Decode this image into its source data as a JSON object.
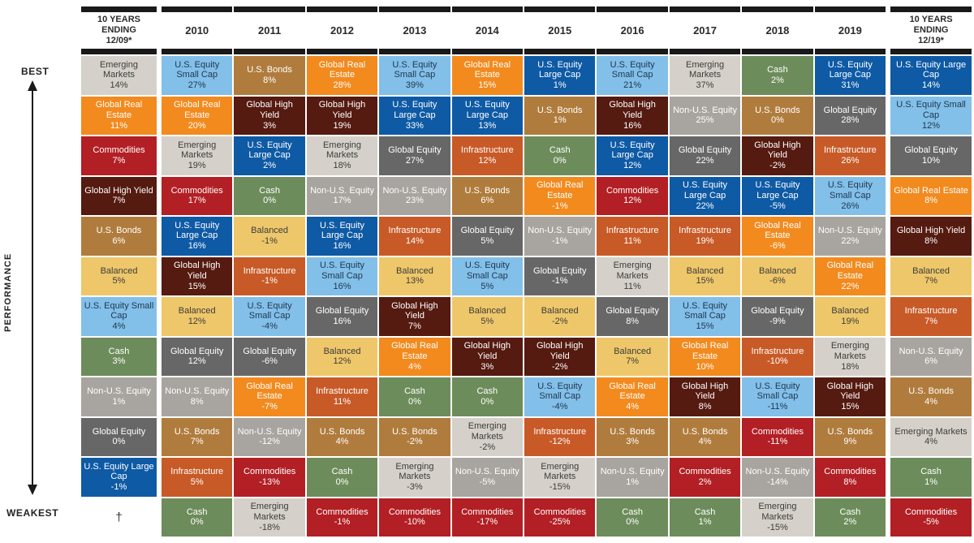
{
  "left_axis": {
    "best": "BEST",
    "performance": "PERFORMANCE",
    "weakest": "WEAKEST",
    "footnote_marker": "†"
  },
  "asset_colors": {
    "Emerging Markets": {
      "bg": "#d5d1ca",
      "fg": "#3c3c3c"
    },
    "U.S. Equity Small Cap": {
      "bg": "#82bfe9",
      "fg": "#21394f"
    },
    "U.S. Bonds": {
      "bg": "#b07c3d",
      "fg": "#ffffff"
    },
    "Global Real Estate": {
      "bg": "#f28a1e",
      "fg": "#ffffff"
    },
    "U.S. Equity Large Cap": {
      "bg": "#0e5aa5",
      "fg": "#ffffff"
    },
    "Global High Yield": {
      "bg": "#551a10",
      "fg": "#ffffff"
    },
    "Commodities": {
      "bg": "#b21f24",
      "fg": "#ffffff"
    },
    "Cash": {
      "bg": "#6d8c5b",
      "fg": "#ffffff"
    },
    "Global Equity": {
      "bg": "#676767",
      "fg": "#ffffff"
    },
    "Non-U.S. Equity": {
      "bg": "#a8a49f",
      "fg": "#ffffff"
    },
    "Balanced": {
      "bg": "#eec76a",
      "fg": "#3c3c3c"
    },
    "Infrastructure": {
      "bg": "#c85a27",
      "fg": "#ffffff"
    }
  },
  "chart_data": {
    "type": "table",
    "layout": "asset-class returns ranked best (top) to weakest (bottom) per column",
    "columns": [
      {
        "label": "10 YEARS\nENDING\n12/09*",
        "cells": [
          {
            "asset": "Emerging Markets",
            "value": "14%"
          },
          {
            "asset": "Global Real Estate",
            "value": "11%"
          },
          {
            "asset": "Commodities",
            "value": "7%"
          },
          {
            "asset": "Global High Yield",
            "value": "7%"
          },
          {
            "asset": "U.S. Bonds",
            "value": "6%"
          },
          {
            "asset": "Balanced",
            "value": "5%"
          },
          {
            "asset": "U.S. Equity Small Cap",
            "value": "4%"
          },
          {
            "asset": "Cash",
            "value": "3%"
          },
          {
            "asset": "Non-U.S. Equity",
            "value": "1%"
          },
          {
            "asset": "Global Equity",
            "value": "0%"
          },
          {
            "asset": "U.S. Equity Large Cap",
            "value": "-1%"
          },
          {
            "asset": "†",
            "value": ""
          }
        ]
      },
      {
        "label": "2010",
        "cells": [
          {
            "asset": "U.S. Equity Small Cap",
            "value": "27%"
          },
          {
            "asset": "Global Real Estate",
            "value": "20%"
          },
          {
            "asset": "Emerging Markets",
            "value": "19%"
          },
          {
            "asset": "Commodities",
            "value": "17%"
          },
          {
            "asset": "U.S. Equity Large Cap",
            "value": "16%"
          },
          {
            "asset": "Global High Yield",
            "value": "15%"
          },
          {
            "asset": "Balanced",
            "value": "12%"
          },
          {
            "asset": "Global Equity",
            "value": "12%"
          },
          {
            "asset": "Non-U.S. Equity",
            "value": "8%"
          },
          {
            "asset": "U.S. Bonds",
            "value": "7%"
          },
          {
            "asset": "Infrastructure",
            "value": "5%"
          },
          {
            "asset": "Cash",
            "value": "0%"
          }
        ]
      },
      {
        "label": "2011",
        "cells": [
          {
            "asset": "U.S. Bonds",
            "value": "8%"
          },
          {
            "asset": "Global High Yield",
            "value": "3%"
          },
          {
            "asset": "U.S. Equity Large Cap",
            "value": "2%"
          },
          {
            "asset": "Cash",
            "value": "0%"
          },
          {
            "asset": "Balanced",
            "value": "-1%"
          },
          {
            "asset": "Infrastructure",
            "value": "-1%"
          },
          {
            "asset": "U.S. Equity Small Cap",
            "value": "-4%"
          },
          {
            "asset": "Global Equity",
            "value": "-6%"
          },
          {
            "asset": "Global Real Estate",
            "value": "-7%"
          },
          {
            "asset": "Non-U.S. Equity",
            "value": "-12%"
          },
          {
            "asset": "Commodities",
            "value": "-13%"
          },
          {
            "asset": "Emerging Markets",
            "value": "-18%"
          }
        ]
      },
      {
        "label": "2012",
        "cells": [
          {
            "asset": "Global Real Estate",
            "value": "28%"
          },
          {
            "asset": "Global High Yield",
            "value": "19%"
          },
          {
            "asset": "Emerging Markets",
            "value": "18%"
          },
          {
            "asset": "Non-U.S. Equity",
            "value": "17%"
          },
          {
            "asset": "U.S. Equity Large Cap",
            "value": "16%"
          },
          {
            "asset": "U.S. Equity Small Cap",
            "value": "16%"
          },
          {
            "asset": "Global Equity",
            "value": "16%"
          },
          {
            "asset": "Balanced",
            "value": "12%"
          },
          {
            "asset": "Infrastructure",
            "value": "11%"
          },
          {
            "asset": "U.S. Bonds",
            "value": "4%"
          },
          {
            "asset": "Cash",
            "value": "0%"
          },
          {
            "asset": "Commodities",
            "value": "-1%"
          }
        ]
      },
      {
        "label": "2013",
        "cells": [
          {
            "asset": "U.S. Equity Small Cap",
            "value": "39%"
          },
          {
            "asset": "U.S. Equity Large Cap",
            "value": "33%"
          },
          {
            "asset": "Global Equity",
            "value": "27%"
          },
          {
            "asset": "Non-U.S. Equity",
            "value": "23%"
          },
          {
            "asset": "Infrastructure",
            "value": "14%"
          },
          {
            "asset": "Balanced",
            "value": "13%"
          },
          {
            "asset": "Global High Yield",
            "value": "7%"
          },
          {
            "asset": "Global Real Estate",
            "value": "4%"
          },
          {
            "asset": "Cash",
            "value": "0%"
          },
          {
            "asset": "U.S. Bonds",
            "value": "-2%"
          },
          {
            "asset": "Emerging Markets",
            "value": "-3%"
          },
          {
            "asset": "Commodities",
            "value": "-10%"
          }
        ]
      },
      {
        "label": "2014",
        "cells": [
          {
            "asset": "Global Real Estate",
            "value": "15%"
          },
          {
            "asset": "U.S. Equity Large Cap",
            "value": "13%"
          },
          {
            "asset": "Infrastructure",
            "value": "12%"
          },
          {
            "asset": "U.S. Bonds",
            "value": "6%"
          },
          {
            "asset": "Global Equity",
            "value": "5%"
          },
          {
            "asset": "U.S. Equity Small Cap",
            "value": "5%"
          },
          {
            "asset": "Balanced",
            "value": "5%"
          },
          {
            "asset": "Global High Yield",
            "value": "3%"
          },
          {
            "asset": "Cash",
            "value": "0%"
          },
          {
            "asset": "Emerging Markets",
            "value": "-2%"
          },
          {
            "asset": "Non-U.S. Equity",
            "value": "-5%"
          },
          {
            "asset": "Commodities",
            "value": "-17%"
          }
        ]
      },
      {
        "label": "2015",
        "cells": [
          {
            "asset": "U.S. Equity Large Cap",
            "value": "1%"
          },
          {
            "asset": "U.S. Bonds",
            "value": "1%"
          },
          {
            "asset": "Cash",
            "value": "0%"
          },
          {
            "asset": "Global Real Estate",
            "value": "-1%"
          },
          {
            "asset": "Non-U.S. Equity",
            "value": "-1%"
          },
          {
            "asset": "Global Equity",
            "value": "-1%"
          },
          {
            "asset": "Balanced",
            "value": "-2%"
          },
          {
            "asset": "Global High Yield",
            "value": "-2%"
          },
          {
            "asset": "U.S. Equity Small Cap",
            "value": "-4%"
          },
          {
            "asset": "Infrastructure",
            "value": "-12%"
          },
          {
            "asset": "Emerging Markets",
            "value": "-15%"
          },
          {
            "asset": "Commodities",
            "value": "-25%"
          }
        ]
      },
      {
        "label": "2016",
        "cells": [
          {
            "asset": "U.S. Equity Small Cap",
            "value": "21%"
          },
          {
            "asset": "Global High Yield",
            "value": "16%"
          },
          {
            "asset": "U.S. Equity Large Cap",
            "value": "12%"
          },
          {
            "asset": "Commodities",
            "value": "12%"
          },
          {
            "asset": "Infrastructure",
            "value": "11%"
          },
          {
            "asset": "Emerging Markets",
            "value": "11%"
          },
          {
            "asset": "Global Equity",
            "value": "8%"
          },
          {
            "asset": "Balanced",
            "value": "7%"
          },
          {
            "asset": "Global Real Estate",
            "value": "4%"
          },
          {
            "asset": "U.S. Bonds",
            "value": "3%"
          },
          {
            "asset": "Non-U.S. Equity",
            "value": "1%"
          },
          {
            "asset": "Cash",
            "value": "0%"
          }
        ]
      },
      {
        "label": "2017",
        "cells": [
          {
            "asset": "Emerging Markets",
            "value": "37%"
          },
          {
            "asset": "Non-U.S. Equity",
            "value": "25%"
          },
          {
            "asset": "Global Equity",
            "value": "22%"
          },
          {
            "asset": "U.S. Equity Large Cap",
            "value": "22%"
          },
          {
            "asset": "Infrastructure",
            "value": "19%"
          },
          {
            "asset": "Balanced",
            "value": "15%"
          },
          {
            "asset": "U.S. Equity Small Cap",
            "value": "15%"
          },
          {
            "asset": "Global Real Estate",
            "value": "10%"
          },
          {
            "asset": "Global High Yield",
            "value": "8%"
          },
          {
            "asset": "U.S. Bonds",
            "value": "4%"
          },
          {
            "asset": "Commodities",
            "value": "2%"
          },
          {
            "asset": "Cash",
            "value": "1%"
          }
        ]
      },
      {
        "label": "2018",
        "cells": [
          {
            "asset": "Cash",
            "value": "2%"
          },
          {
            "asset": "U.S. Bonds",
            "value": "0%"
          },
          {
            "asset": "Global High Yield",
            "value": "-2%"
          },
          {
            "asset": "U.S. Equity Large Cap",
            "value": "-5%"
          },
          {
            "asset": "Global Real Estate",
            "value": "-6%"
          },
          {
            "asset": "Balanced",
            "value": "-6%"
          },
          {
            "asset": "Global Equity",
            "value": "-9%"
          },
          {
            "asset": "Infrastructure",
            "value": "-10%"
          },
          {
            "asset": "U.S. Equity Small Cap",
            "value": "-11%"
          },
          {
            "asset": "Commodities",
            "value": "-11%"
          },
          {
            "asset": "Non-U.S. Equity",
            "value": "-14%"
          },
          {
            "asset": "Emerging Markets",
            "value": "-15%"
          }
        ]
      },
      {
        "label": "2019",
        "cells": [
          {
            "asset": "U.S. Equity Large Cap",
            "value": "31%"
          },
          {
            "asset": "Global Equity",
            "value": "28%"
          },
          {
            "asset": "Infrastructure",
            "value": "26%"
          },
          {
            "asset": "U.S. Equity Small Cap",
            "value": "26%"
          },
          {
            "asset": "Non-U.S. Equity",
            "value": "22%"
          },
          {
            "asset": "Global Real Estate",
            "value": "22%"
          },
          {
            "asset": "Balanced",
            "value": "19%"
          },
          {
            "asset": "Emerging Markets",
            "value": "18%"
          },
          {
            "asset": "Global High Yield",
            "value": "15%"
          },
          {
            "asset": "U.S. Bonds",
            "value": "9%"
          },
          {
            "asset": "Commodities",
            "value": "8%"
          },
          {
            "asset": "Cash",
            "value": "2%"
          }
        ]
      },
      {
        "label": "10 YEARS\nENDING\n12/19*",
        "cells": [
          {
            "asset": "U.S. Equity Large Cap",
            "value": "14%"
          },
          {
            "asset": "U.S. Equity Small Cap",
            "value": "12%"
          },
          {
            "asset": "Global Equity",
            "value": "10%"
          },
          {
            "asset": "Global Real Estate",
            "value": "8%"
          },
          {
            "asset": "Global High Yield",
            "value": "8%"
          },
          {
            "asset": "Balanced",
            "value": "7%"
          },
          {
            "asset": "Infrastructure",
            "value": "7%"
          },
          {
            "asset": "Non-U.S. Equity",
            "value": "6%"
          },
          {
            "asset": "U.S. Bonds",
            "value": "4%"
          },
          {
            "asset": "Emerging Markets",
            "value": "4%"
          },
          {
            "asset": "Cash",
            "value": "1%"
          },
          {
            "asset": "Commodities",
            "value": "-5%"
          }
        ]
      }
    ]
  }
}
